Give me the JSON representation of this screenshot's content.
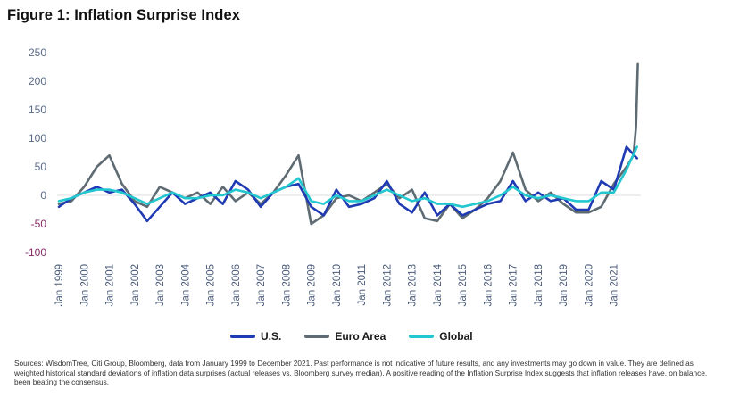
{
  "title": "Figure 1: Inflation Surprise Index",
  "footnote": "Sources: WisdomTree, Citi Group, Bloomberg, data from January 1999 to December 2021. Past performance is not indicative of future results, and any investments may go down in value. They are defined as weighted historical standard deviations of inflation data surprises (actual releases vs. Bloomberg survey median). A positive reading of the Inflation Surprise Index suggests that inflation releases have, on balance, been beating the consensus.",
  "legend": [
    {
      "label": "U.S.",
      "color": "#1f3bb3"
    },
    {
      "label": "Euro Area",
      "color": "#5f6b73"
    },
    {
      "label": "Global",
      "color": "#22c7cf"
    }
  ],
  "chart_data": {
    "type": "line",
    "title": "Figure 1: Inflation Surprise Index",
    "xlabel": "",
    "ylabel": "",
    "ylim": [
      -100,
      250
    ],
    "yticks": [
      -100,
      -50,
      0,
      50,
      100,
      150,
      200,
      250
    ],
    "xlim": [
      1999.0,
      2022.0
    ],
    "xtick_labels": [
      "Jan 1999",
      "Jan 2000",
      "Jan 2001",
      "Jan 2002",
      "Jan 2003",
      "Jan 2004",
      "Jan 2005",
      "Jan 2006",
      "Jan 2007",
      "Jan 2008",
      "Jan 2009",
      "Jan 2010",
      "Jan 2011",
      "Jan 2012",
      "Jan 2013",
      "Jan 2014",
      "Jan 2015",
      "Jan 2016",
      "Jan 2017",
      "Jan 2018",
      "Jan 2019",
      "Jan 2020",
      "Jan 2021"
    ],
    "grid": false,
    "legend_position": "bottom",
    "series": [
      {
        "name": "U.S.",
        "color": "#1f3bb3",
        "x": [
          1999.0,
          1999.5,
          2000.0,
          2000.5,
          2001.0,
          2001.5,
          2002.0,
          2002.5,
          2003.0,
          2003.5,
          2004.0,
          2004.5,
          2005.0,
          2005.5,
          2006.0,
          2006.5,
          2007.0,
          2007.5,
          2008.0,
          2008.5,
          2009.0,
          2009.5,
          2010.0,
          2010.5,
          2011.0,
          2011.5,
          2012.0,
          2012.5,
          2013.0,
          2013.5,
          2014.0,
          2014.5,
          2015.0,
          2015.5,
          2016.0,
          2016.5,
          2017.0,
          2017.5,
          2018.0,
          2018.5,
          2019.0,
          2019.5,
          2020.0,
          2020.5,
          2021.0,
          2021.5,
          2021.92
        ],
        "values": [
          -20,
          -5,
          5,
          15,
          5,
          10,
          -15,
          -45,
          -20,
          5,
          -15,
          -5,
          5,
          -15,
          25,
          10,
          -20,
          5,
          15,
          20,
          -20,
          -35,
          10,
          -20,
          -15,
          -5,
          25,
          -15,
          -30,
          5,
          -35,
          -15,
          -35,
          -25,
          -15,
          -10,
          25,
          -10,
          5,
          -10,
          -5,
          -25,
          -25,
          25,
          10,
          85,
          65
        ]
      },
      {
        "name": "Euro Area",
        "color": "#5f6b73",
        "x": [
          1999.0,
          1999.5,
          2000.0,
          2000.5,
          2001.0,
          2001.5,
          2002.0,
          2002.5,
          2003.0,
          2003.5,
          2004.0,
          2004.5,
          2005.0,
          2005.5,
          2006.0,
          2006.5,
          2007.0,
          2007.5,
          2008.0,
          2008.5,
          2009.0,
          2009.5,
          2010.0,
          2010.5,
          2011.0,
          2011.5,
          2012.0,
          2012.5,
          2013.0,
          2013.5,
          2014.0,
          2014.5,
          2015.0,
          2015.5,
          2016.0,
          2016.5,
          2017.0,
          2017.5,
          2018.0,
          2018.5,
          2019.0,
          2019.5,
          2020.0,
          2020.5,
          2021.0,
          2021.5,
          2021.78,
          2021.88,
          2021.95
        ],
        "values": [
          -15,
          -10,
          15,
          50,
          70,
          20,
          -10,
          -20,
          15,
          5,
          -5,
          5,
          -15,
          15,
          -10,
          5,
          -15,
          5,
          35,
          70,
          -50,
          -35,
          -5,
          0,
          -10,
          5,
          20,
          -5,
          10,
          -40,
          -45,
          -15,
          -40,
          -25,
          -5,
          25,
          75,
          10,
          -10,
          5,
          -15,
          -30,
          -30,
          -20,
          20,
          50,
          70,
          120,
          230
        ]
      },
      {
        "name": "Global",
        "color": "#22c7cf",
        "x": [
          1999.0,
          1999.5,
          2000.0,
          2000.5,
          2001.0,
          2001.5,
          2002.0,
          2002.5,
          2003.0,
          2003.5,
          2004.0,
          2004.5,
          2005.0,
          2005.5,
          2006.0,
          2006.5,
          2007.0,
          2007.5,
          2008.0,
          2008.5,
          2009.0,
          2009.5,
          2010.0,
          2010.5,
          2011.0,
          2011.5,
          2012.0,
          2012.5,
          2013.0,
          2013.5,
          2014.0,
          2014.5,
          2015.0,
          2015.5,
          2016.0,
          2016.5,
          2017.0,
          2017.5,
          2018.0,
          2018.5,
          2019.0,
          2019.5,
          2020.0,
          2020.5,
          2021.0,
          2021.5,
          2021.92
        ],
        "values": [
          -10,
          -5,
          5,
          10,
          10,
          5,
          -5,
          -15,
          -5,
          5,
          -5,
          -5,
          0,
          0,
          10,
          5,
          -5,
          5,
          15,
          30,
          -10,
          -15,
          0,
          -10,
          -10,
          0,
          10,
          0,
          -10,
          -5,
          -15,
          -15,
          -20,
          -15,
          -10,
          0,
          15,
          0,
          -5,
          0,
          -5,
          -10,
          -10,
          5,
          5,
          45,
          85
        ]
      }
    ]
  }
}
